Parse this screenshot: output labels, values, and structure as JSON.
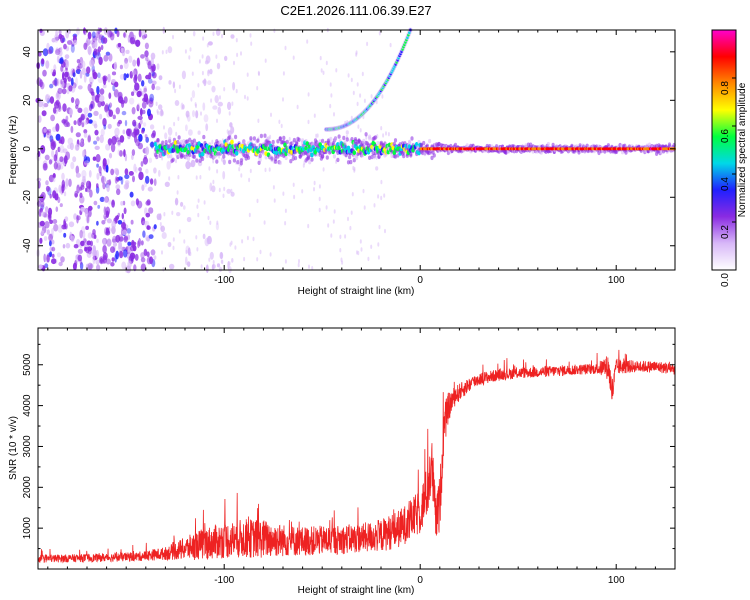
{
  "chart_data": [
    {
      "type": "heatmap",
      "title": "C2E1.2026.111.06.39.E27",
      "xlabel": "Height of straight line (km)",
      "ylabel": "Frequency (Hz)",
      "xlim": [
        -195,
        130
      ],
      "ylim": [
        -50,
        49
      ],
      "xticks": [
        -100,
        0,
        100
      ],
      "xtick_labels": [
        "-100",
        "0",
        "100"
      ],
      "yticks": [
        -40,
        -20,
        0,
        20,
        40
      ],
      "ytick_labels": [
        "-40",
        "-20",
        "0",
        "20",
        "40"
      ],
      "colorbar": {
        "label": "Normalized spectral amplitude",
        "range": [
          0.0,
          1.0
        ],
        "ticks": [
          0.0,
          0.2,
          0.4,
          0.6,
          0.8
        ],
        "tick_labels": [
          "0.0",
          "0.2",
          "0.4",
          "0.6",
          "0.8"
        ],
        "colors": [
          "#ffffff",
          "#d8b8f8",
          "#8a2be2",
          "#2020ff",
          "#00d8e8",
          "#00ff40",
          "#ffff00",
          "#ff8800",
          "#ff0000",
          "#ff00cc"
        ]
      },
      "features": [
        {
          "name": "carrier",
          "x_range": [
            -135,
            130
          ],
          "frequency": 0,
          "amplitude": [
            0.5,
            0.9
          ]
        },
        {
          "name": "rising-branch",
          "x_range": [
            -48,
            -5
          ],
          "frequency_range": [
            8,
            49
          ],
          "amplitude": [
            0.3,
            0.5
          ]
        },
        {
          "name": "noise-field",
          "x_range": [
            -195,
            -135
          ],
          "frequency_range": [
            -50,
            49
          ],
          "amplitude": [
            0.1,
            0.3
          ]
        }
      ]
    },
    {
      "type": "line",
      "title": "",
      "xlabel": "Height of straight line (km)",
      "ylabel": "SNR (10 * v/v)",
      "xlim": [
        -195,
        130
      ],
      "ylim": [
        0,
        5900
      ],
      "xticks": [
        -100,
        0,
        100
      ],
      "xtick_labels": [
        "-100",
        "0",
        "100"
      ],
      "yticks": [
        1000,
        2000,
        3000,
        4000,
        5000
      ],
      "ytick_labels": [
        "1000",
        "2000",
        "3000",
        "4000",
        "5000"
      ],
      "series": [
        {
          "name": "SNR",
          "color": "#ee2222",
          "x": [
            -195,
            -180,
            -160,
            -145,
            -130,
            -120,
            -110,
            -100,
            -90,
            -80,
            -70,
            -60,
            -50,
            -40,
            -30,
            -20,
            -10,
            -5,
            0,
            3,
            6,
            8,
            10,
            12,
            14,
            16,
            18,
            22,
            26,
            30,
            40,
            50,
            60,
            70,
            80,
            90,
            96,
            98,
            100,
            110,
            120,
            130
          ],
          "mean": [
            250,
            260,
            280,
            300,
            380,
            500,
            620,
            700,
            750,
            740,
            700,
            680,
            700,
            720,
            760,
            820,
            1000,
            1200,
            1400,
            1800,
            2500,
            1200,
            1600,
            3400,
            3900,
            4100,
            4250,
            4400,
            4550,
            4650,
            4750,
            4800,
            4820,
            4850,
            4880,
            4900,
            4950,
            4300,
            4950,
            4960,
            4950,
            4900
          ],
          "spread": [
            120,
            120,
            130,
            140,
            200,
            350,
            500,
            550,
            600,
            600,
            500,
            450,
            450,
            450,
            450,
            500,
            600,
            600,
            700,
            800,
            900,
            700,
            900,
            700,
            500,
            350,
            300,
            250,
            220,
            200,
            180,
            170,
            170,
            170,
            160,
            160,
            400,
            500,
            250,
            180,
            180,
            180
          ]
        }
      ]
    }
  ]
}
